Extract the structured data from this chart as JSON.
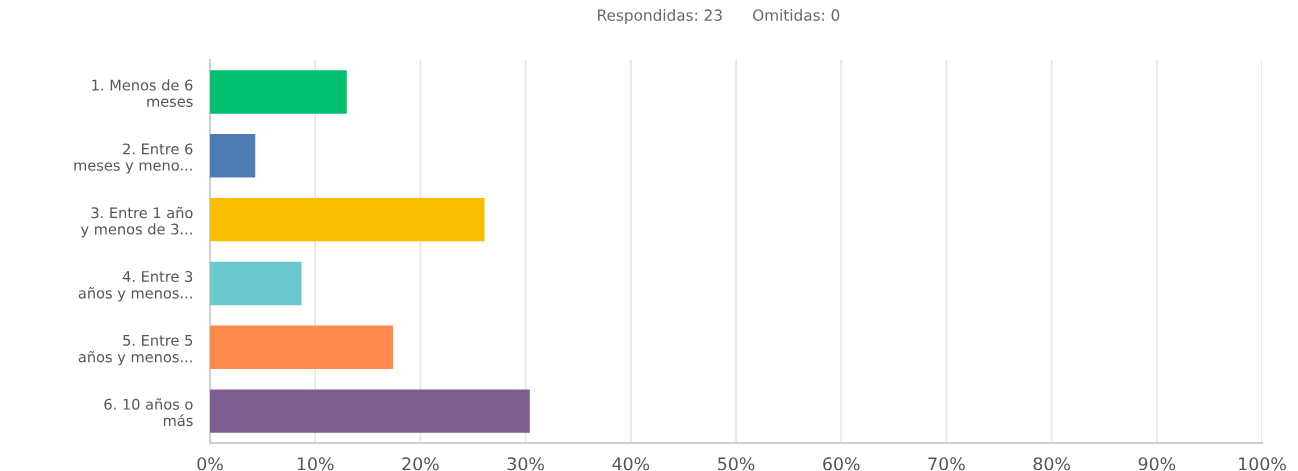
{
  "chart_data": {
    "type": "bar",
    "orientation": "horizontal",
    "title": "Respondidas: 23      Omitidas: 0",
    "categories": [
      "1. Menos de 6\nmeses",
      "2. Entre 6\nmeses y meno...",
      "3. Entre 1 año\ny menos de 3...",
      "4. Entre 3\naños y menos...",
      "5. Entre 5\naños y menos...",
      "6. 10 años o\nmás"
    ],
    "values": [
      13.0,
      4.3,
      26.1,
      8.7,
      17.4,
      30.4
    ],
    "colors": [
      "#00bf6f",
      "#507cb6",
      "#f9be00",
      "#6bc8cd",
      "#ff8b4f",
      "#7d5e90"
    ],
    "xlim": [
      0,
      100
    ],
    "xticks": [
      {
        "value": 0,
        "label": "0%"
      },
      {
        "value": 10,
        "label": "10%"
      },
      {
        "value": 20,
        "label": "20%"
      },
      {
        "value": 30,
        "label": "30%"
      },
      {
        "value": 40,
        "label": "40%"
      },
      {
        "value": 50,
        "label": "50%"
      },
      {
        "value": 60,
        "label": "60%"
      },
      {
        "value": 70,
        "label": "70%"
      },
      {
        "value": 80,
        "label": "80%"
      },
      {
        "value": 90,
        "label": "90%"
      },
      {
        "value": 100,
        "label": "100%"
      }
    ],
    "grid": "x"
  }
}
